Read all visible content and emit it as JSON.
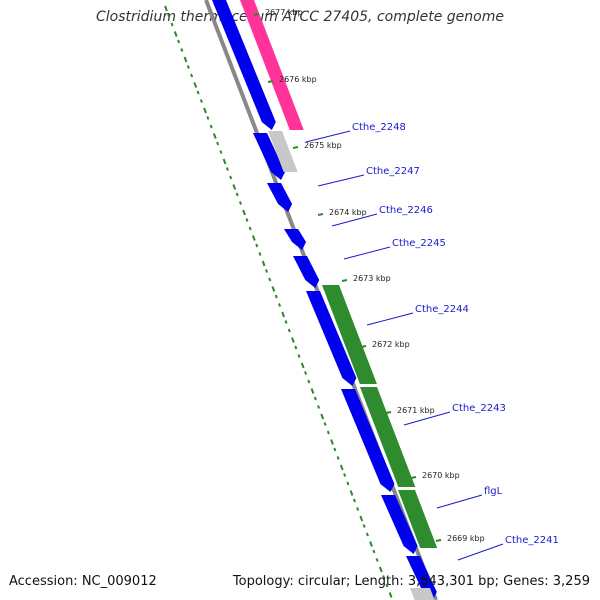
{
  "title": "Clostridium thermocellum ATCC 27405, complete genome",
  "footer": {
    "accession": "Accession: NC_009012",
    "summary": "Topology: circular; Length: 3,843,301 bp; Genes: 3,259"
  },
  "ticks": [
    "2677 kbp",
    "2676 kbp",
    "2675 kbp",
    "2674 kbp",
    "2673 kbp",
    "2672 kbp",
    "2671 kbp",
    "2670 kbp",
    "2669 kbp"
  ],
  "gene_labels": [
    "Cthe_2248",
    "Cthe_2247",
    "Cthe_2246",
    "Cthe_2245",
    "Cthe_2244",
    "Cthe_2243",
    "flgL",
    "Cthe_2241"
  ],
  "colors": {
    "cds": "#0000ee",
    "pink_feature": "#ff3399",
    "grey_feature": "#c8c8c8",
    "green_feature": "#2e8b2e",
    "backbone": "#888888",
    "dotted_track": "#2a8a2a",
    "label": "#1a1acc",
    "label_line": "#1a1acc"
  }
}
